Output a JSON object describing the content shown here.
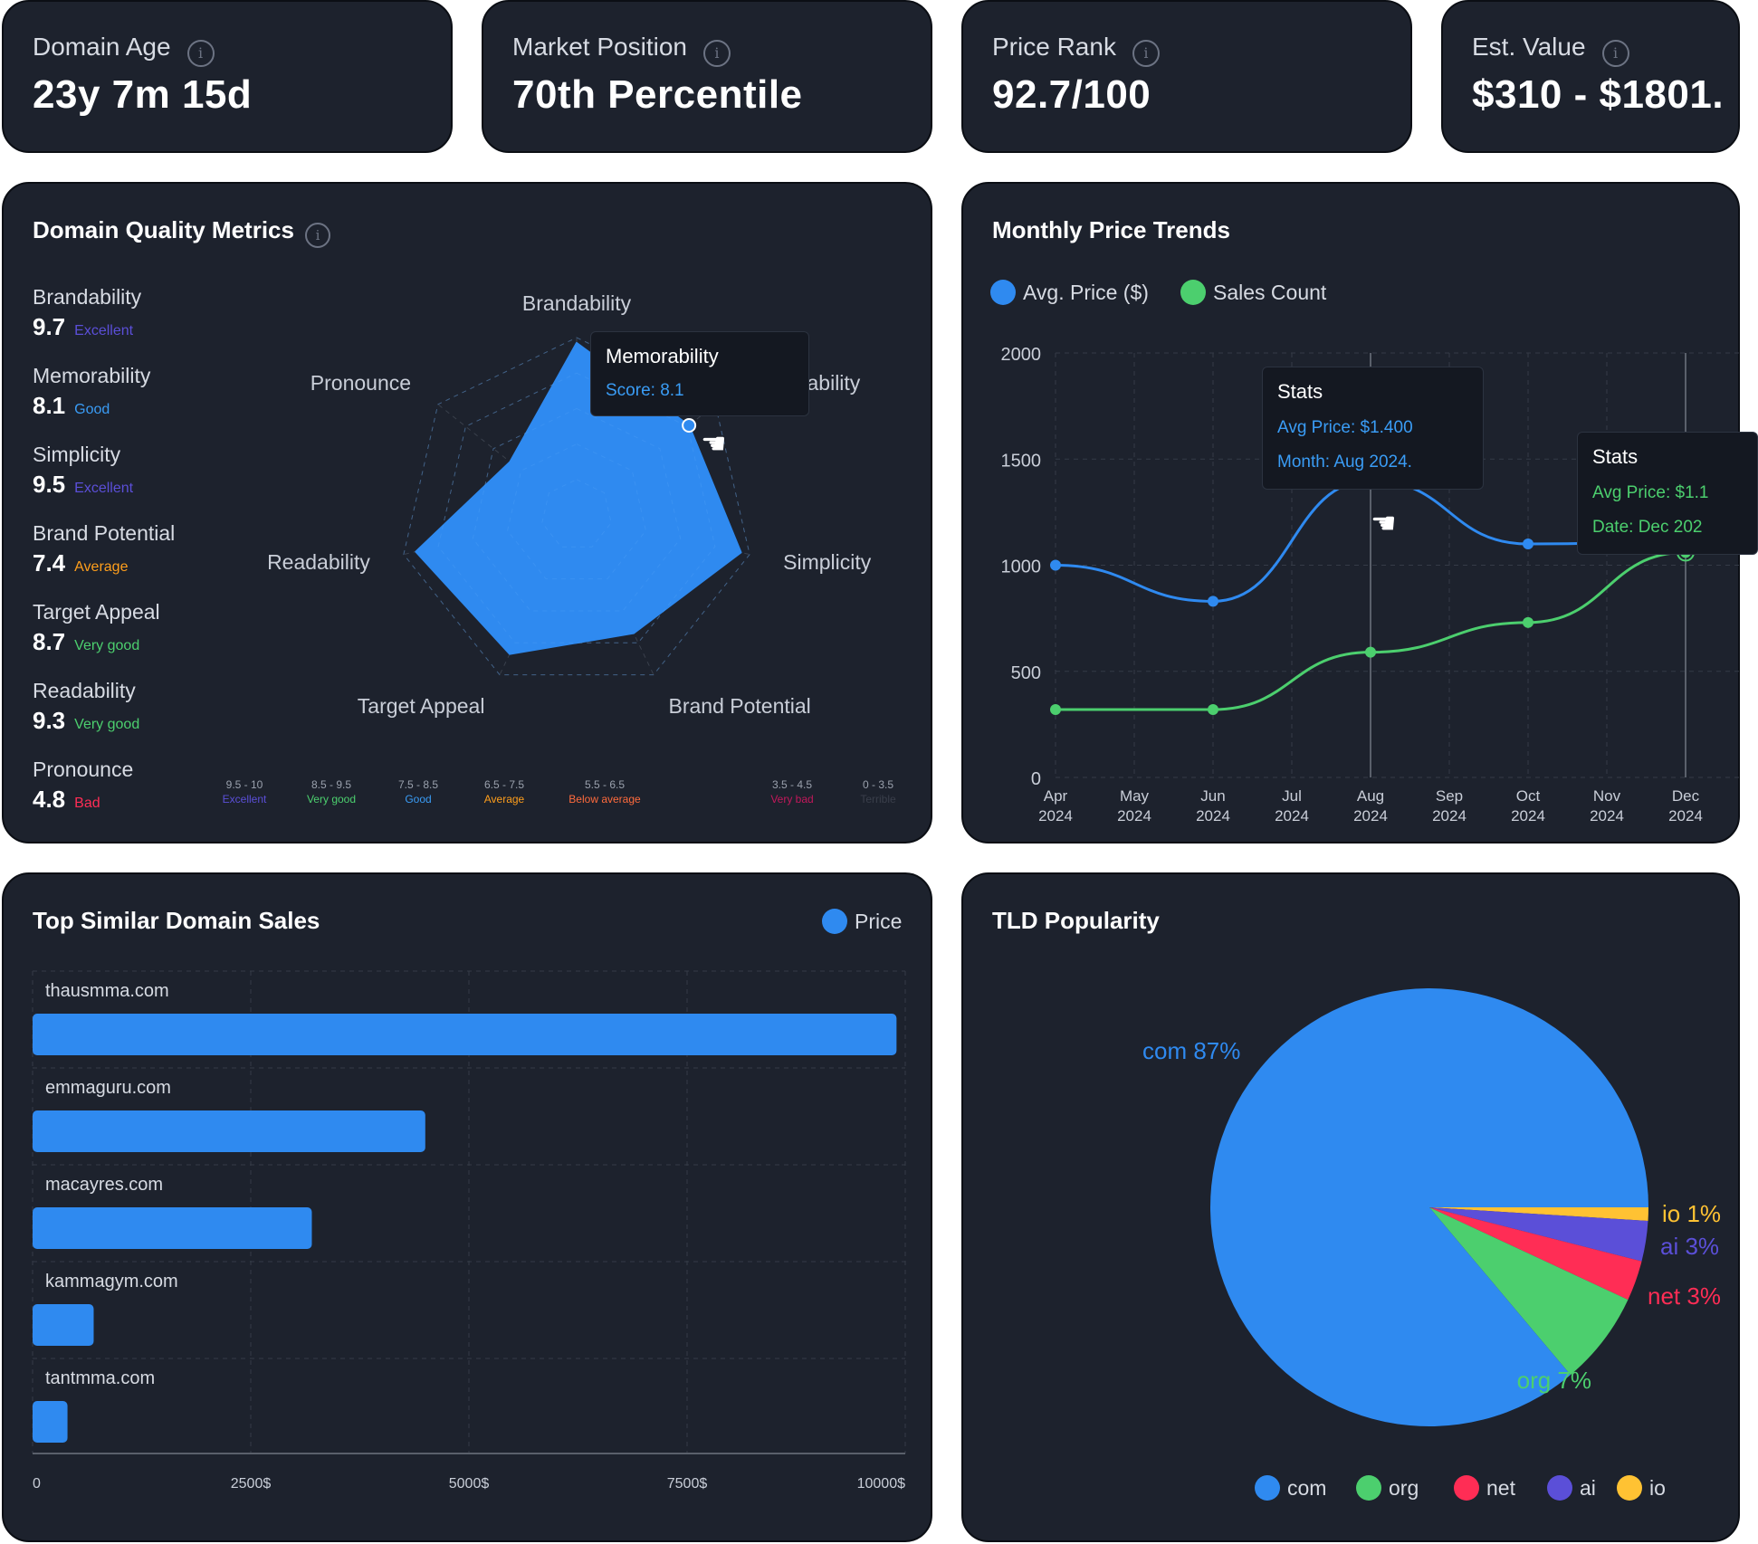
{
  "stats": [
    {
      "label": "Domain Age",
      "value": "23y 7m 15d"
    },
    {
      "label": "Market Position",
      "value": "70th Percentile"
    },
    {
      "label": "Price Rank",
      "value": "92.7/100"
    },
    {
      "label": "Est. Value",
      "value": "$310 - $1801."
    }
  ],
  "info_glyph": "i",
  "colors": {
    "background": "#1d222d",
    "blue": "#2f8af0",
    "green": "#4ccf6e",
    "red": "#ff2d55",
    "purple": "#5b4fd8",
    "yellow": "#ffc233"
  },
  "quality": {
    "title": "Domain Quality Metrics",
    "metrics": [
      {
        "name": "Brandability",
        "score": "9.7",
        "rating": "Excellent",
        "color": "#5b4fd8"
      },
      {
        "name": "Memorability",
        "score": "8.1",
        "rating": "Good",
        "color": "#3a9cf5"
      },
      {
        "name": "Simplicity",
        "score": "9.5",
        "rating": "Excellent",
        "color": "#5b4fd8"
      },
      {
        "name": "Brand Potential",
        "score": "7.4",
        "rating": "Average",
        "color": "#ff9f1c"
      },
      {
        "name": "Target Appeal",
        "score": "8.7",
        "rating": "Very good",
        "color": "#4ccf6e"
      },
      {
        "name": "Readability",
        "score": "9.3",
        "rating": "Very good",
        "color": "#4ccf6e"
      },
      {
        "name": "Pronounce",
        "score": "4.8",
        "rating": "Bad",
        "color": "#ff2d55"
      }
    ],
    "scale": [
      {
        "range": "9.5 - 10",
        "label": "Excellent",
        "color": "#5b4fd8"
      },
      {
        "range": "8.5 - 9.5",
        "label": "Very good",
        "color": "#4ccf6e"
      },
      {
        "range": "7.5 - 8.5",
        "label": "Good",
        "color": "#3a9cf5"
      },
      {
        "range": "6.5 - 7.5",
        "label": "Average",
        "color": "#ff9f1c"
      },
      {
        "range": "5.5 - 6.5",
        "label": "Below average",
        "color": "#ff6b3d"
      },
      {
        "range": "3.5 - 4.5",
        "label": "Very bad",
        "color": "#c2185b"
      },
      {
        "range": "0 - 3.5",
        "label": "Terrible",
        "color": "#3a3f4b"
      }
    ],
    "tooltip": {
      "title": "Memorability",
      "text": "Score: 8.1"
    }
  },
  "price_trends": {
    "title": "Monthly Price Trends",
    "tooltip1": {
      "title": "Stats",
      "line1": "Avg Price: $1.400",
      "line2": "Month: Aug 2024."
    },
    "tooltip2": {
      "title": "Stats",
      "line1": "Avg Price: $1.1",
      "line2": "Date: Dec 202"
    }
  },
  "similar_sales": {
    "title": "Top Similar Domain Sales"
  },
  "tld": {
    "title": "TLD Popularity"
  },
  "chart_data": [
    {
      "type": "radar",
      "axes": [
        "Brandability",
        "Memorability",
        "Simplicity",
        "Brand Potential",
        "Target Appeal",
        "Readability",
        "Pronounce"
      ],
      "values": [
        9.7,
        8.1,
        9.5,
        7.4,
        8.7,
        9.3,
        4.8
      ],
      "range": [
        0,
        10
      ]
    },
    {
      "type": "line",
      "categories": [
        "Apr 2024",
        "May 2024",
        "Jun 2024",
        "Jul 2024",
        "Aug 2024",
        "Sep 2024",
        "Oct 2024",
        "Nov 2024",
        "Dec 2024"
      ],
      "series": [
        {
          "name": "Avg. Price ($)",
          "color": "#2f8af0",
          "values": [
            1000,
            null,
            830,
            null,
            1400,
            null,
            1100,
            null,
            1110
          ]
        },
        {
          "name": "Sales Count",
          "color": "#4ccf6e",
          "values": [
            320,
            null,
            320,
            null,
            590,
            null,
            730,
            null,
            1060
          ]
        }
      ],
      "ylim": [
        0,
        2000
      ],
      "yticks": [
        0,
        500,
        1000,
        1500,
        2000
      ],
      "grid": true,
      "legend": "top-left"
    },
    {
      "type": "bar",
      "orientation": "horizontal",
      "categories": [
        "thausmma.com",
        "emmaguru.com",
        "macayres.com",
        "kammagym.com",
        "tantmma.com"
      ],
      "series": [
        {
          "name": "Price",
          "color": "#2f8af0",
          "values": [
            9900,
            4500,
            3200,
            700,
            400
          ]
        }
      ],
      "xlim": [
        0,
        10000
      ],
      "xticks": [
        "0",
        "2500$",
        "5000$",
        "7500$",
        "10000$"
      ],
      "grid": true,
      "legend": "top-right"
    },
    {
      "type": "pie",
      "labels": [
        "com",
        "org",
        "net",
        "ai",
        "io"
      ],
      "values": [
        87,
        7,
        3,
        3,
        1
      ],
      "slice_labels": [
        "com 87%",
        "org 7%",
        "net 3%",
        "ai 3%",
        "io 1%"
      ],
      "colors": [
        "#2f8af0",
        "#4ccf6e",
        "#ff2d55",
        "#5b4fd8",
        "#ffc233"
      ],
      "legend": "bottom"
    }
  ]
}
